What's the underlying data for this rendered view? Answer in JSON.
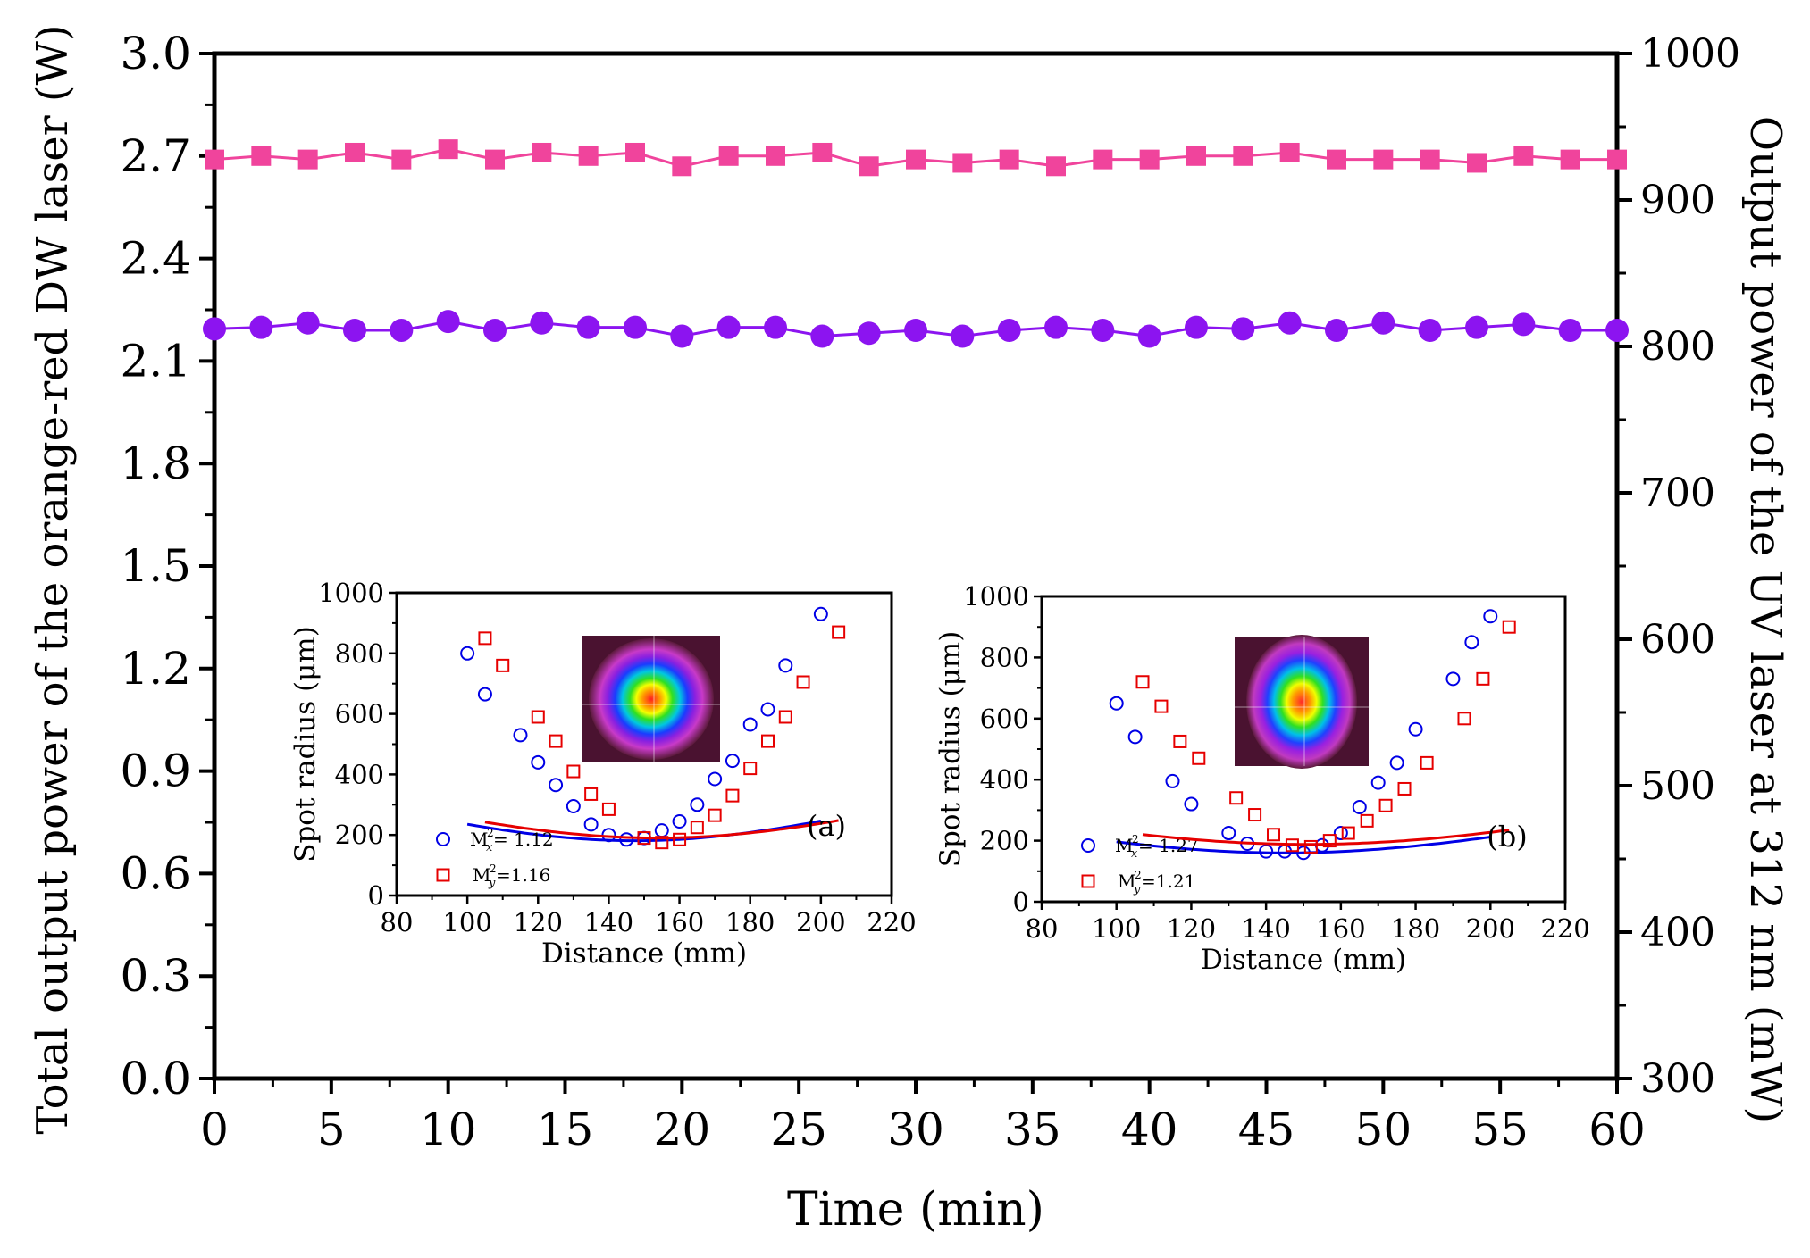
{
  "colors": {
    "output_power": "#f0449c",
    "uv_power": "#8c14f0",
    "mx": "#0000e6",
    "my": "#e60000",
    "axis": "#000000"
  },
  "chart_data": [
    {
      "type": "scatter",
      "title": "",
      "xlabel": "Time (min)",
      "ylabel_left": "Total output power of the orange-red DW laser  (W)",
      "ylabel_right": "Output power of the UV laser at 312 nm (mW)",
      "xlim": [
        0,
        60
      ],
      "ylim_left": [
        0,
        3.0
      ],
      "ylim_right": [
        300,
        1000
      ],
      "x_ticks": [
        "0",
        "5",
        "10",
        "15",
        "20",
        "25",
        "30",
        "35",
        "40",
        "45",
        "50",
        "55",
        "60"
      ],
      "y_ticks_left": [
        "0.0",
        "0.3",
        "0.6",
        "0.9",
        "1.2",
        "1.5",
        "1.8",
        "2.1",
        "2.4",
        "2.7",
        "3.0"
      ],
      "y_ticks_right": [
        "300",
        "400",
        "500",
        "600",
        "700",
        "800",
        "900",
        "1000"
      ],
      "x": [
        0,
        2,
        4,
        6,
        8,
        10,
        12,
        14,
        16,
        18,
        20,
        22,
        24,
        26,
        28,
        30,
        32,
        34,
        36,
        38,
        40,
        42,
        44,
        46,
        48,
        50,
        52,
        54,
        56,
        58,
        60
      ],
      "series": [
        {
          "name": "Total output power (orange-red DW)",
          "axis": "left",
          "marker": "square",
          "values": [
            2.69,
            2.7,
            2.69,
            2.71,
            2.69,
            2.72,
            2.69,
            2.71,
            2.7,
            2.71,
            2.67,
            2.7,
            2.7,
            2.71,
            2.67,
            2.69,
            2.68,
            2.69,
            2.67,
            2.69,
            2.69,
            2.7,
            2.7,
            2.71,
            2.69,
            2.69,
            2.69,
            2.68,
            2.7,
            2.69,
            2.69
          ]
        },
        {
          "name": "UV output power at 312 nm",
          "axis": "right",
          "marker": "circle",
          "values": [
            812,
            813,
            816,
            811,
            811,
            817,
            811,
            816,
            813,
            813,
            807,
            813,
            813,
            807,
            809,
            811,
            807,
            811,
            813,
            811,
            807,
            813,
            812,
            816,
            811,
            816,
            811,
            813,
            815,
            811,
            811
          ]
        }
      ]
    },
    {
      "type": "scatter",
      "panel_label": "(a)",
      "xlabel": "Distance (mm)",
      "ylabel": "Spot radius (μm)",
      "xlim": [
        80,
        220
      ],
      "ylim": [
        0,
        1000
      ],
      "x_ticks": [
        "80",
        "100",
        "120",
        "140",
        "160",
        "180",
        "200",
        "220"
      ],
      "y_ticks": [
        "0",
        "200",
        "400",
        "600",
        "800",
        "1000"
      ],
      "series": [
        {
          "name": "M_x^2 = 1.12",
          "legend_base": "M",
          "legend_sup": "2",
          "legend_sub": "x",
          "legend_value": " = 1.12",
          "marker": "circle",
          "x": [
            100,
            105,
            115,
            120,
            125,
            130,
            135,
            140,
            145,
            150,
            155,
            160,
            165,
            170,
            175,
            180,
            185,
            190,
            200
          ],
          "y": [
            800,
            665,
            530,
            440,
            365,
            295,
            235,
            200,
            185,
            190,
            215,
            245,
            300,
            385,
            445,
            565,
            615,
            760,
            930
          ],
          "fit": {
            "a": 0.1756,
            "x0": 147.4,
            "y0": 181
          }
        },
        {
          "name": "M_y^2 =1.16",
          "legend_base": "M",
          "legend_sup": "2",
          "legend_sub": "y",
          "legend_value": " =1.16",
          "marker": "square",
          "x": [
            105,
            110,
            120,
            125,
            130,
            135,
            140,
            150,
            155,
            160,
            165,
            170,
            175,
            180,
            185,
            190,
            195,
            205
          ],
          "y": [
            850,
            760,
            590,
            510,
            410,
            335,
            285,
            190,
            175,
            185,
            225,
            265,
            330,
            420,
            510,
            590,
            705,
            870
          ],
          "fit": {
            "a": 0.1632,
            "x0": 153.6,
            "y0": 190
          }
        }
      ]
    },
    {
      "type": "scatter",
      "panel_label": "(b)",
      "xlabel": "Distance (mm)",
      "ylabel": "Spot radius (μm)",
      "xlim": [
        80,
        220
      ],
      "ylim": [
        0,
        1000
      ],
      "x_ticks": [
        "80",
        "100",
        "120",
        "140",
        "160",
        "180",
        "200",
        "220"
      ],
      "y_ticks": [
        "0",
        "200",
        "400",
        "600",
        "800",
        "1000"
      ],
      "series": [
        {
          "name": "M_x^2 = 1.27",
          "legend_base": "M",
          "legend_sup": "2",
          "legend_sub": "x",
          "legend_value": " = 1.27",
          "marker": "circle",
          "x": [
            100,
            105,
            115,
            120,
            130,
            135,
            140,
            145,
            150,
            155,
            160,
            165,
            170,
            175,
            180,
            190,
            195,
            200
          ],
          "y": [
            650,
            540,
            395,
            320,
            225,
            190,
            165,
            165,
            160,
            185,
            225,
            310,
            390,
            455,
            565,
            730,
            850,
            935
          ],
          "fit": {
            "a": 0.1581,
            "x0": 145.0,
            "y0": 160
          }
        },
        {
          "name": "M_y^2 =1.21",
          "legend_base": "M",
          "legend_sup": "2",
          "legend_sub": "y",
          "legend_value": " =1.21",
          "marker": "square",
          "x": [
            107,
            112,
            117,
            122,
            132,
            137,
            142,
            147,
            152,
            157,
            162,
            167,
            172,
            177,
            183,
            193,
            198,
            205
          ],
          "y": [
            720,
            640,
            525,
            470,
            340,
            285,
            220,
            185,
            180,
            200,
            225,
            265,
            315,
            370,
            455,
            600,
            730,
            900
          ],
          "fit": {
            "a": 0.1385,
            "x0": 150.9,
            "y0": 188
          }
        }
      ]
    }
  ],
  "beam_profiles": [
    {
      "name": "beam-profile-a",
      "shape": "circular"
    },
    {
      "name": "beam-profile-b",
      "shape": "elliptical"
    }
  ]
}
